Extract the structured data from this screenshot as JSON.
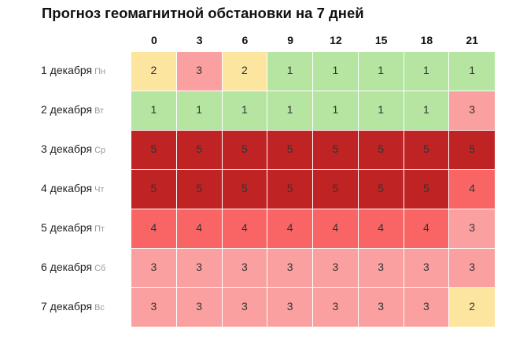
{
  "title": "Прогноз геомагнитной обстановки на 7 дней",
  "colors": {
    "1": "#b5e5a0",
    "2": "#fbe59f",
    "3": "#fba0a0",
    "4": "#f96565",
    "5": "#c02323"
  },
  "hours": [
    "0",
    "3",
    "6",
    "9",
    "12",
    "15",
    "18",
    "21"
  ],
  "days": [
    {
      "date": "1 декабря",
      "dow": "Пн",
      "values": [
        2,
        3,
        2,
        1,
        1,
        1,
        1,
        1
      ]
    },
    {
      "date": "2 декабря",
      "dow": "Вт",
      "values": [
        1,
        1,
        1,
        1,
        1,
        1,
        1,
        3
      ]
    },
    {
      "date": "3 декабря",
      "dow": "Ср",
      "values": [
        5,
        5,
        5,
        5,
        5,
        5,
        5,
        5
      ]
    },
    {
      "date": "4 декабря",
      "dow": "Чт",
      "values": [
        5,
        5,
        5,
        5,
        5,
        5,
        5,
        4
      ]
    },
    {
      "date": "5 декабря",
      "dow": "Пт",
      "values": [
        4,
        4,
        4,
        4,
        4,
        4,
        4,
        3
      ]
    },
    {
      "date": "6 декабря",
      "dow": "Сб",
      "values": [
        3,
        3,
        3,
        3,
        3,
        3,
        3,
        3
      ]
    },
    {
      "date": "7 декабря",
      "dow": "Вс",
      "values": [
        3,
        3,
        3,
        3,
        3,
        3,
        3,
        2
      ]
    }
  ]
}
